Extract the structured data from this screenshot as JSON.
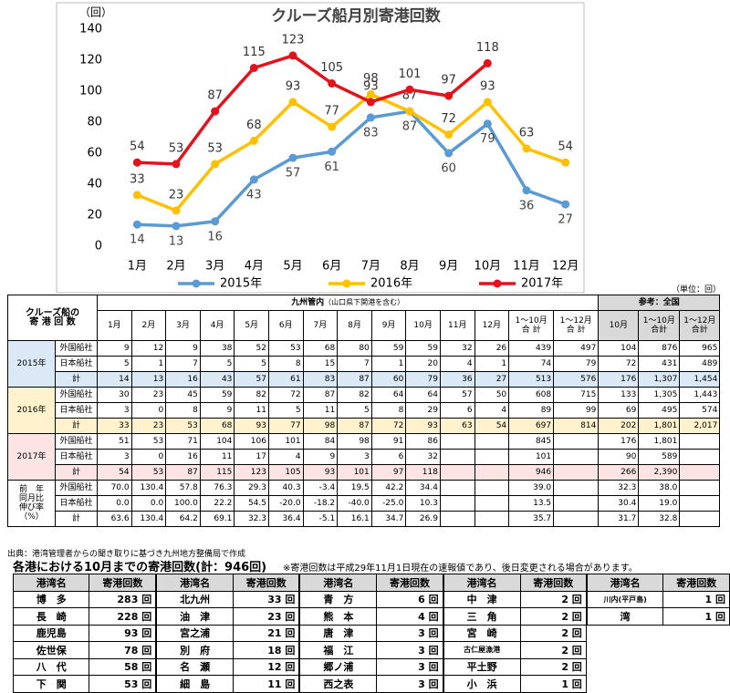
{
  "chart_data": {
    "type": "line",
    "title": "クルーズ船月別寄港回数",
    "y_label": "（回）",
    "categories": [
      "1月",
      "2月",
      "3月",
      "4月",
      "5月",
      "6月",
      "7月",
      "8月",
      "9月",
      "10月",
      "11月",
      "12月"
    ],
    "series": [
      {
        "name": "2015年",
        "color": "#5b9bd5",
        "values": [
          14,
          13,
          16,
          43,
          57,
          61,
          83,
          87,
          60,
          79,
          36,
          27
        ]
      },
      {
        "name": "2016年",
        "color": "#ffc000",
        "values": [
          33,
          23,
          53,
          68,
          93,
          77,
          98,
          87,
          72,
          93,
          63,
          54
        ]
      },
      {
        "name": "2017年",
        "color": "#e3121b",
        "values": [
          54,
          53,
          87,
          115,
          123,
          105,
          93,
          101,
          97,
          118,
          null,
          null
        ]
      }
    ],
    "ylim": [
      0,
      140
    ],
    "yticks": [
      0,
      20,
      40,
      60,
      80,
      100,
      120,
      140
    ],
    "legend": "bottom"
  },
  "table": {
    "unit": "（単位：回）",
    "corner": [
      "クルーズ船の",
      "寄 港 回 数"
    ],
    "group_kyushu": "九州管内",
    "group_note": "（山口県下関港を含む）",
    "group_national": "参考：全国",
    "columns": [
      "1月",
      "2月",
      "3月",
      "4月",
      "5月",
      "6月",
      "7月",
      "8月",
      "9月",
      "10月",
      "11月",
      "12月",
      "1～10月\n合 計",
      "1～12月\n合 計",
      "10月",
      "1～10月\n合計",
      "1～12月\n合計"
    ],
    "sections": [
      {
        "label": [
          "2015年"
        ],
        "color": "#dbe8f6",
        "rows": [
          {
            "label": "外国船社",
            "cells": [
              "9",
              "12",
              "9",
              "38",
              "52",
              "53",
              "68",
              "80",
              "59",
              "59",
              "32",
              "26",
              "439",
              "497",
              "104",
              "876",
              "965"
            ]
          },
          {
            "label": "日本船社",
            "cells": [
              "5",
              "1",
              "7",
              "5",
              "5",
              "8",
              "15",
              "7",
              "1",
              "20",
              "4",
              "1",
              "74",
              "79",
              "72",
              "431",
              "489"
            ]
          },
          {
            "label": "計",
            "cells": [
              "14",
              "13",
              "16",
              "43",
              "57",
              "61",
              "83",
              "87",
              "60",
              "79",
              "36",
              "27",
              "513",
              "576",
              "176",
              "1,307",
              "1,454"
            ]
          }
        ]
      },
      {
        "label": [
          "2016年"
        ],
        "color": "#fff2cc",
        "rows": [
          {
            "label": "外国船社",
            "cells": [
              "30",
              "23",
              "45",
              "59",
              "82",
              "72",
              "87",
              "82",
              "64",
              "64",
              "57",
              "50",
              "608",
              "715",
              "133",
              "1,305",
              "1,443"
            ]
          },
          {
            "label": "日本船社",
            "cells": [
              "3",
              "0",
              "8",
              "9",
              "11",
              "5",
              "11",
              "5",
              "8",
              "29",
              "6",
              "4",
              "89",
              "99",
              "69",
              "495",
              "574"
            ]
          },
          {
            "label": "計",
            "cells": [
              "33",
              "23",
              "53",
              "68",
              "93",
              "77",
              "98",
              "87",
              "72",
              "93",
              "63",
              "54",
              "697",
              "814",
              "202",
              "1,801",
              "2,017"
            ]
          }
        ]
      },
      {
        "label": [
          "2017年"
        ],
        "color": "#fce4e4",
        "rows": [
          {
            "label": "外国船社",
            "cells": [
              "51",
              "53",
              "71",
              "104",
              "106",
              "101",
              "84",
              "98",
              "91",
              "86",
              null,
              null,
              "845",
              null,
              "176",
              "1,801",
              null
            ]
          },
          {
            "label": "日本船社",
            "cells": [
              "3",
              "0",
              "16",
              "11",
              "17",
              "4",
              "9",
              "3",
              "6",
              "32",
              null,
              null,
              "101",
              null,
              "90",
              "589",
              null
            ]
          },
          {
            "label": "計",
            "cells": [
              "54",
              "53",
              "87",
              "115",
              "123",
              "105",
              "93",
              "101",
              "97",
              "118",
              null,
              null,
              "946",
              null,
              "266",
              "2,390",
              null
            ]
          }
        ]
      },
      {
        "label": [
          "前　年",
          "同月比",
          "伸び率",
          "（%）"
        ],
        "color": "#ffffff",
        "rows": [
          {
            "label": "外国船社",
            "cells": [
              "70.0",
              "130.4",
              "57.8",
              "76.3",
              "29.3",
              "40.3",
              "-3.4",
              "19.5",
              "42.2",
              "34.4",
              null,
              null,
              "39.0",
              null,
              "32.3",
              "38.0",
              null
            ]
          },
          {
            "label": "日本船社",
            "cells": [
              "0.0",
              "0.0",
              "100.0",
              "22.2",
              "54.5",
              "-20.0",
              "-18.2",
              "-40.0",
              "-25.0",
              "10.3",
              null,
              null,
              "13.5",
              null,
              "30.4",
              "19.0",
              null
            ]
          },
          {
            "label": "計",
            "cells": [
              "63.6",
              "130.4",
              "64.2",
              "69.1",
              "32.3",
              "36.4",
              "-5.1",
              "16.1",
              "34.7",
              "26.9",
              null,
              null,
              "35.7",
              null,
              "31.7",
              "32.8",
              null
            ]
          }
        ]
      }
    ]
  },
  "source": "出典：港湾管理者からの聞き取りに基づき九州地方整備局で作成",
  "ports": {
    "title": "各港における10月までの寄港回数(計：946回)",
    "note": "※寄港回数は平成29年11月1日現在の速報値であり、後日変更される場合があります。",
    "header": [
      "港湾名",
      "寄港回数"
    ],
    "groups": [
      [
        [
          "博　多",
          "283 回"
        ],
        [
          "長　崎",
          "228 回"
        ],
        [
          "鹿児島",
          "93 回"
        ],
        [
          "佐世保",
          "78 回"
        ],
        [
          "八　代",
          "58 回"
        ],
        [
          "下　関",
          "53 回"
        ]
      ],
      [
        [
          "北九州",
          "33 回"
        ],
        [
          "油　津",
          "23 回"
        ],
        [
          "宮之浦",
          "21 回"
        ],
        [
          "別　府",
          "18 回"
        ],
        [
          "名　瀬",
          "12 回"
        ],
        [
          "細　島",
          "11 回"
        ]
      ],
      [
        [
          "青　方",
          "6 回"
        ],
        [
          "熊　本",
          "4 回"
        ],
        [
          "唐　津",
          "3 回"
        ],
        [
          "福　江",
          "3 回"
        ],
        [
          "郷ノ浦",
          "3 回"
        ],
        [
          "西之表",
          "3 回"
        ]
      ],
      [
        [
          "中　津",
          "2 回"
        ],
        [
          "三　角",
          "2 回"
        ],
        [
          "宮　崎",
          "2 回"
        ],
        [
          "古仁屋漁港",
          "2 回"
        ],
        [
          "平土野",
          "2 回"
        ],
        [
          "小　浜",
          "1 回"
        ]
      ],
      [
        [
          "川内(平戸島)",
          "1 回"
        ],
        [
          "湾",
          "1 回"
        ]
      ]
    ]
  }
}
